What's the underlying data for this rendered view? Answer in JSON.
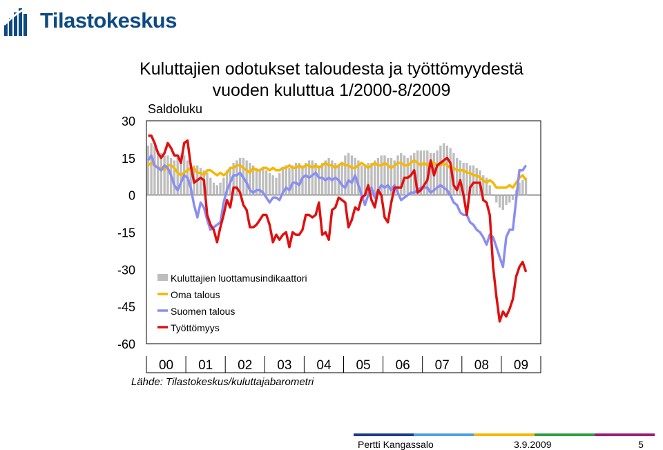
{
  "brand": {
    "name": "Tilastokeskus",
    "color": "#0e4a84"
  },
  "title_line1": "Kuluttajien odotukset taloudesta ja työttömyydestä",
  "title_line2": "vuoden kuluttua 1/2000-8/2009",
  "chart_data": {
    "type": "bar+line",
    "ylabel": "Saldoluku",
    "ylim": [
      -60,
      30
    ],
    "yticks": [
      "30",
      "15",
      "0",
      "-15",
      "-30",
      "-45",
      "-60"
    ],
    "xticks": [
      "00",
      "01",
      "02",
      "03",
      "04",
      "05",
      "06",
      "07",
      "08",
      "09"
    ],
    "x_start": "2000-01",
    "x_end": "2009-08",
    "legend_position": "lower-left inside",
    "source": "Lähde: Tilastokeskus/kuluttajabarometri",
    "series": [
      {
        "name": "Kuluttajien luottamusindikaattori",
        "kind": "bar",
        "color": "#bdbdbd",
        "annual_values": [
          [
            20,
            21,
            20,
            18,
            17,
            16,
            16,
            15,
            14,
            15,
            16,
            16
          ],
          [
            14,
            13,
            12,
            12,
            11,
            10,
            9,
            7,
            5,
            4,
            5,
            7
          ],
          [
            10,
            11,
            13,
            14,
            15,
            15,
            14,
            13,
            12,
            11,
            10,
            11
          ],
          [
            10,
            9,
            8,
            7,
            9,
            11,
            12,
            11,
            12,
            13,
            13,
            12
          ],
          [
            13,
            14,
            14,
            13,
            12,
            13,
            14,
            15,
            14,
            13,
            12,
            13
          ],
          [
            16,
            17,
            16,
            15,
            14,
            12,
            12,
            13,
            13,
            14,
            15,
            16
          ],
          [
            16,
            15,
            15,
            14,
            16,
            17,
            16,
            15,
            16,
            17,
            18,
            18
          ],
          [
            18,
            18,
            17,
            17,
            18,
            20,
            21,
            20,
            19,
            17,
            15,
            14
          ],
          [
            13,
            13,
            12,
            12,
            11,
            10,
            8,
            7,
            4,
            0,
            -3,
            -5
          ],
          [
            -6,
            -4,
            -3,
            -2,
            2,
            5,
            6,
            7
          ]
        ]
      },
      {
        "name": "Oma talous",
        "kind": "line",
        "color": "#f5b800",
        "annual_values": [
          [
            12,
            13,
            12,
            11,
            11,
            10,
            12,
            12,
            11,
            9,
            8,
            9
          ],
          [
            10,
            11,
            11,
            9,
            9,
            8,
            10,
            10,
            9,
            8,
            9,
            8
          ],
          [
            9,
            11,
            11,
            12,
            12,
            11,
            10,
            9,
            11,
            10,
            10,
            11
          ],
          [
            11,
            10,
            11,
            10,
            10,
            11,
            11,
            12,
            11,
            11,
            12,
            11
          ],
          [
            12,
            12,
            11,
            12,
            11,
            12,
            13,
            12,
            12,
            11,
            12,
            13
          ],
          [
            12,
            12,
            11,
            11,
            12,
            13,
            12,
            11,
            12,
            13,
            12,
            12
          ],
          [
            13,
            12,
            11,
            12,
            13,
            13,
            12,
            12,
            13,
            14,
            13,
            12
          ],
          [
            13,
            12,
            13,
            13,
            12,
            12,
            13,
            12,
            11,
            11,
            10,
            10
          ],
          [
            10,
            9,
            9,
            8,
            8,
            7,
            6,
            5,
            6,
            5,
            3,
            3
          ],
          [
            3,
            3,
            4,
            3,
            5,
            7,
            8,
            6
          ]
        ]
      },
      {
        "name": "Suomen talous",
        "kind": "line",
        "color": "#8a8ef2",
        "annual_values": [
          [
            14,
            16,
            12,
            11,
            10,
            12,
            11,
            8,
            4,
            2,
            5,
            8
          ],
          [
            7,
            3,
            -4,
            -9,
            -3,
            -5,
            -10,
            -14,
            -13,
            -12,
            -11,
            -3
          ],
          [
            2,
            5,
            8,
            8,
            9,
            7,
            5,
            2,
            1,
            2,
            2,
            1
          ],
          [
            -1,
            -3,
            -1,
            -1,
            -2,
            1,
            3,
            2,
            5,
            5,
            4,
            7
          ],
          [
            8,
            7,
            8,
            9,
            7,
            7,
            6,
            7,
            6,
            7,
            6,
            4
          ],
          [
            3,
            6,
            5,
            8,
            4,
            0,
            -4,
            0,
            3,
            -1,
            2,
            4
          ],
          [
            3,
            4,
            2,
            4,
            1,
            -2,
            -1,
            0,
            1,
            1,
            2,
            3
          ],
          [
            3,
            3,
            1,
            2,
            3,
            4,
            3,
            2,
            0,
            -3,
            -4,
            -7
          ],
          [
            -8,
            -8,
            -11,
            -12,
            -14,
            -15,
            -17,
            -20,
            -16,
            -17,
            -21,
            -25
          ],
          [
            -29,
            -17,
            -14,
            -14,
            -2,
            10,
            10,
            12
          ]
        ]
      },
      {
        "name": "Työttömyys",
        "kind": "line",
        "color": "#e01010",
        "annual_values": [
          [
            24,
            24,
            21,
            17,
            15,
            17,
            21,
            19,
            16,
            16,
            13,
            21
          ],
          [
            22,
            12,
            5,
            6,
            7,
            6,
            -8,
            -12,
            -14,
            -19,
            -13,
            -8
          ],
          [
            -2,
            -5,
            3,
            3,
            1,
            -4,
            -6,
            -13,
            -13,
            -12,
            -10,
            -8
          ],
          [
            -8,
            -12,
            -19,
            -16,
            -18,
            -16,
            -15,
            -21,
            -15,
            -16,
            -16,
            -14
          ],
          [
            -8,
            -8,
            -9,
            -8,
            -3,
            -16,
            -15,
            -18,
            -6,
            -5,
            -1,
            -2
          ],
          [
            -3,
            -13,
            -10,
            -5,
            -6,
            -1,
            0,
            4,
            -2,
            -5,
            2,
            0
          ],
          [
            -9,
            -11,
            -3,
            3,
            3,
            3,
            7,
            7,
            8,
            10,
            1,
            2
          ],
          [
            4,
            6,
            14,
            8,
            12,
            13,
            14,
            15,
            13,
            4,
            2,
            6
          ],
          [
            0,
            -8,
            3,
            5,
            5,
            5,
            -2,
            -3,
            -8,
            -29,
            -41,
            -51
          ],
          [
            -47,
            -49,
            -46,
            -42,
            -33,
            -29,
            -27,
            -31
          ]
        ]
      }
    ]
  },
  "footer": {
    "author": "Pertti Kangassalo",
    "date": "3.9.2009",
    "page": "5",
    "stripe_colors": [
      "#1a3c8c",
      "#4aa3df",
      "#f5b800",
      "#2e9e42",
      "#9b1c7a"
    ]
  }
}
